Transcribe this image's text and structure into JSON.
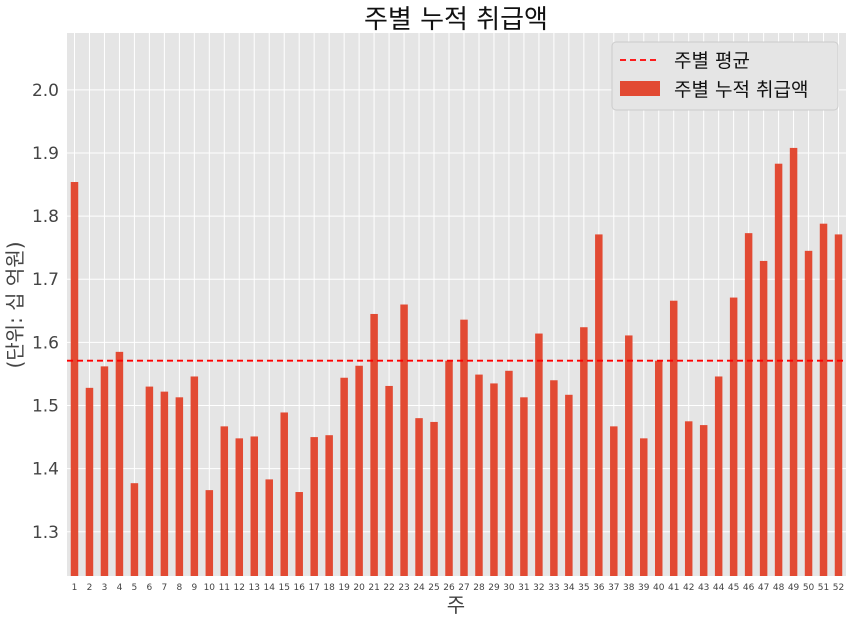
{
  "chart_data": {
    "type": "bar",
    "title": "주별 누적 취급액",
    "xlabel": "주",
    "ylabel": "(단위: 십 억원)",
    "categories": [
      "1",
      "2",
      "3",
      "4",
      "5",
      "6",
      "7",
      "8",
      "9",
      "10",
      "11",
      "12",
      "13",
      "14",
      "15",
      "16",
      "17",
      "18",
      "19",
      "20",
      "21",
      "22",
      "23",
      "24",
      "25",
      "26",
      "27",
      "28",
      "29",
      "30",
      "31",
      "32",
      "33",
      "34",
      "35",
      "36",
      "37",
      "38",
      "39",
      "40",
      "41",
      "42",
      "43",
      "44",
      "45",
      "46",
      "47",
      "48",
      "49",
      "50",
      "51",
      "52"
    ],
    "series": [
      {
        "name": "주별 누적 취급액",
        "color": "#e24a33",
        "values": [
          1.854,
          1.528,
          1.562,
          1.585,
          1.377,
          1.53,
          1.522,
          1.513,
          1.546,
          1.366,
          1.467,
          1.448,
          1.451,
          1.383,
          1.489,
          1.363,
          1.45,
          1.453,
          1.544,
          1.563,
          1.645,
          1.531,
          1.66,
          1.48,
          1.474,
          1.571,
          1.636,
          1.549,
          1.535,
          1.555,
          1.513,
          1.614,
          1.54,
          1.517,
          1.624,
          1.771,
          1.467,
          1.611,
          1.448,
          1.571,
          1.666,
          1.475,
          1.469,
          1.546,
          1.671,
          1.773,
          1.729,
          1.883,
          1.908,
          1.745,
          1.788,
          1.771
        ]
      }
    ],
    "reference_line": {
      "name": "주별 평균",
      "value": 1.571,
      "color": "#ff0000",
      "style": "dashed"
    },
    "ylim": [
      1.23,
      2.09
    ],
    "yticks": [
      "1.3",
      "1.4",
      "1.5",
      "1.6",
      "1.7",
      "1.8",
      "1.9",
      "2.0"
    ],
    "grid": true,
    "legend": "top-right",
    "background": "#e5e5e5",
    "grid_color": "#ffffff"
  }
}
